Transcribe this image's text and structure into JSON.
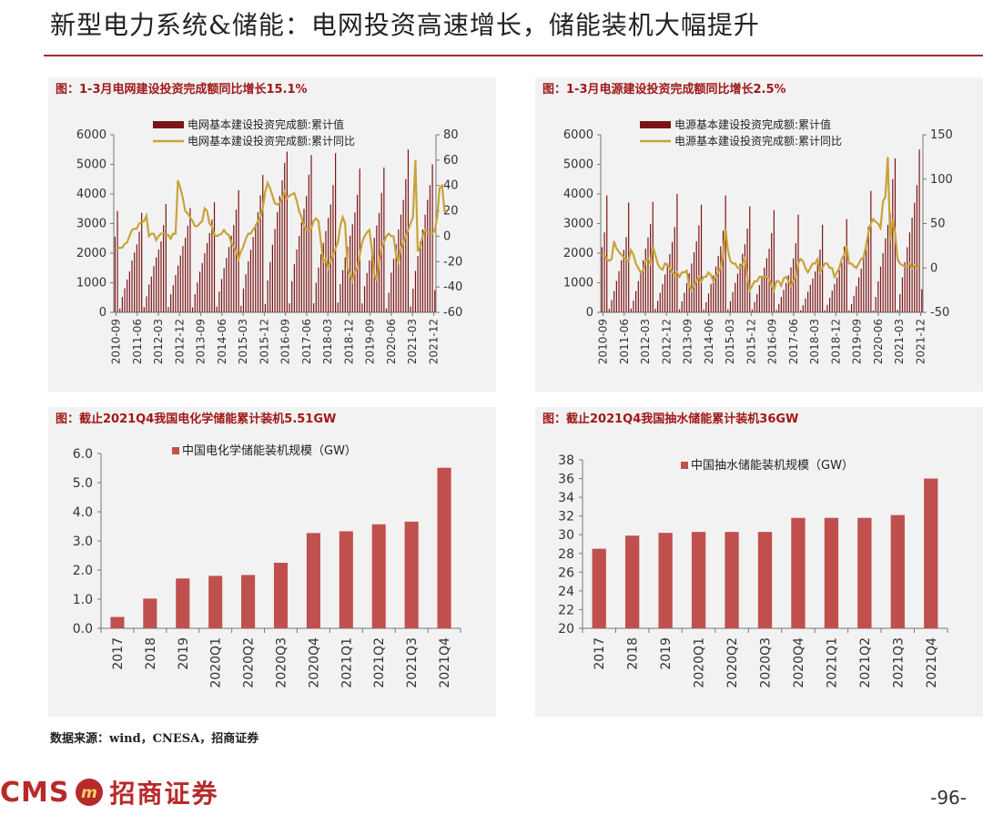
{
  "page": {
    "title": "新型电力系统&储能：电网投资高速增长，储能装机大幅提升",
    "source": "数据来源：wind，CNESA，招商证券",
    "logo_text": "CMS",
    "logo_cn": "招商证券",
    "logo_mark": "m",
    "page_number": "-96-",
    "accent_color": "#a82c2c"
  },
  "chart_data": [
    {
      "type": "bar",
      "title": "图：1-3月电网建设投资完成额同比增长15.1%",
      "ylim": [
        0,
        6000
      ],
      "y_ticks": [
        0,
        1000,
        2000,
        3000,
        4000,
        5000,
        6000
      ],
      "y2lim": [
        -60,
        80
      ],
      "y2_ticks": [
        -60,
        -40,
        -20,
        0,
        20,
        40,
        60,
        80
      ],
      "x_tick_labels": [
        "2010-09",
        "2011-06",
        "2012-03",
        "2012-12",
        "2013-09",
        "2014-06",
        "2015-03",
        "2015-12",
        "2016-09",
        "2017-06",
        "2018-03",
        "2018-12",
        "2019-09",
        "2020-06",
        "2021-03",
        "2021-12"
      ],
      "series": [
        {
          "name": "电网基本建设投资完成额:累计值",
          "kind": "bar",
          "axis": "left",
          "color": "#7b1515",
          "values": [
            2556,
            3425,
            125,
            520,
            815,
            1110,
            1380,
            1750,
            2025,
            2295,
            2725,
            3365,
            175,
            540,
            940,
            1210,
            1560,
            1855,
            2120,
            2400,
            2945,
            3660,
            180,
            610,
            920,
            1260,
            1580,
            1920,
            2245,
            2520,
            2930,
            3525,
            165,
            615,
            1010,
            1375,
            1665,
            2000,
            2345,
            2680,
            3130,
            3720,
            195,
            700,
            1125,
            1500,
            1840,
            2205,
            2590,
            2950,
            3470,
            4125,
            220,
            805,
            1285,
            1725,
            2115,
            2540,
            2985,
            3380,
            3955,
            4640,
            285,
            1080,
            1705,
            2285,
            2820,
            3390,
            3930,
            4460,
            5050,
            5430,
            305,
            1055,
            1625,
            2125,
            2580,
            3040,
            3500,
            3930,
            4650,
            5315,
            310,
            1000,
            1515,
            1960,
            2350,
            2750,
            3190,
            3645,
            4300,
            5375,
            330,
            950,
            1425,
            1855,
            2215,
            2595,
            2975,
            3375,
            3965,
            4855,
            300,
            880,
            1330,
            1755,
            2120,
            2520,
            2935,
            3360,
            4040,
            4895,
            130,
            665,
            1340,
            1810,
            2300,
            2800,
            3300,
            3800,
            4500,
            5500,
            200,
            800,
            1400,
            1900,
            2400,
            2800,
            3300,
            3800,
            4300,
            5000,
            750
          ]
        },
        {
          "name": "电网基本建设投资完成额:累计同比",
          "kind": "line",
          "axis": "right",
          "color": "#c8a33a",
          "values": [
            -10,
            -10,
            -9,
            -9,
            -6,
            -5,
            0,
            5,
            6,
            6,
            10,
            11,
            12,
            16,
            0,
            2,
            2,
            -3,
            0,
            2,
            2,
            1,
            1,
            -2,
            2,
            2,
            44,
            38,
            30,
            20,
            18,
            15,
            12,
            8,
            8,
            10,
            12,
            22,
            20,
            10,
            8,
            1,
            0,
            1,
            2,
            5,
            2,
            1,
            -5,
            -8,
            -12,
            -18,
            -12,
            -8,
            -2,
            2,
            2,
            5,
            8,
            12,
            15,
            22,
            35,
            42,
            38,
            32,
            26,
            25,
            26,
            30,
            35,
            30,
            32,
            33,
            34,
            28,
            20,
            15,
            8,
            5,
            5,
            6,
            12,
            14,
            12,
            -5,
            -20,
            -18,
            -25,
            -20,
            -15,
            -10,
            -5,
            8,
            15,
            10,
            -25,
            -30,
            -35,
            -28,
            -25,
            -15,
            -5,
            0,
            3,
            5,
            -10,
            -30,
            -35,
            -20,
            -10,
            -5,
            0,
            2,
            0,
            0,
            -15,
            -20,
            -10,
            -5,
            0,
            5,
            10,
            15,
            60,
            -12,
            -8,
            0,
            5,
            3,
            2,
            2,
            5,
            15,
            38,
            40,
            20,
            20
          ]
        }
      ]
    },
    {
      "type": "bar",
      "title": "图：1-3月电源建设投资完成额同比增长2.5%",
      "ylim": [
        0,
        6000
      ],
      "y_ticks": [
        0,
        1000,
        2000,
        3000,
        4000,
        5000,
        6000
      ],
      "y2lim": [
        -50,
        150
      ],
      "y2_ticks": [
        -50,
        0,
        50,
        100,
        150
      ],
      "x_tick_labels": [
        "2010-09",
        "2011-06",
        "2012-03",
        "2012-12",
        "2013-09",
        "2014-06",
        "2015-03",
        "2015-12",
        "2016-09",
        "2017-06",
        "2018-03",
        "2018-12",
        "2019-09",
        "2020-06",
        "2021-03",
        "2021-12"
      ],
      "series": [
        {
          "name": "电源基本建设投资完成额:累计值",
          "kind": "bar",
          "axis": "left",
          "color": "#7b1515",
          "values": [
            2200,
            2700,
            3950,
            120,
            420,
            720,
            1060,
            1390,
            1760,
            2110,
            2540,
            3710,
            130,
            400,
            720,
            1060,
            1400,
            1760,
            2150,
            2530,
            2980,
            3730,
            120,
            390,
            660,
            960,
            1280,
            1650,
            1970,
            2380,
            2880,
            4000,
            100,
            370,
            660,
            990,
            1320,
            1650,
            2030,
            2400,
            2940,
            3640,
            95,
            340,
            640,
            960,
            1250,
            1550,
            1900,
            2230,
            2760,
            3950,
            105,
            380,
            680,
            1000,
            1310,
            1640,
            1980,
            2300,
            2830,
            3580,
            100,
            350,
            620,
            920,
            1190,
            1510,
            1830,
            2150,
            2680,
            3450,
            80,
            280,
            520,
            760,
            1000,
            1250,
            1520,
            1820,
            2340,
            3300,
            70,
            240,
            470,
            700,
            930,
            1140,
            1380,
            1650,
            2120,
            2960,
            70,
            250,
            490,
            730,
            960,
            1180,
            1420,
            1680,
            2220,
            3150,
            70,
            280,
            560,
            880,
            1180,
            1480,
            1820,
            2250,
            2900,
            4100,
            60,
            520,
            1050,
            1550,
            2000,
            2500,
            2950,
            3350,
            4500,
            5200,
            90,
            620,
            1180,
            1700,
            2200,
            2700,
            3200,
            3700,
            4300,
            5500,
            780
          ]
        },
        {
          "name": "电源基本建设投资完成额:累计同比",
          "kind": "line",
          "axis": "right",
          "color": "#c8a33a",
          "values": [
            15,
            15,
            10,
            8,
            10,
            30,
            22,
            18,
            15,
            12,
            10,
            8,
            20,
            15,
            5,
            0,
            -5,
            -3,
            8,
            10,
            5,
            25,
            15,
            5,
            0,
            -2,
            5,
            3,
            0,
            -5,
            -8,
            -5,
            -10,
            -5,
            -5,
            -3,
            -20,
            -25,
            -20,
            -15,
            -10,
            -15,
            -10,
            -10,
            -5,
            -8,
            -15,
            -10,
            -5,
            0,
            15,
            45,
            20,
            8,
            5,
            5,
            0,
            0,
            5,
            10,
            -10,
            -25,
            -20,
            -15,
            -15,
            -10,
            -10,
            -10,
            -10,
            -12,
            -20,
            -25,
            -15,
            -15,
            -20,
            -12,
            -10,
            -15,
            -20,
            -15,
            -10,
            5,
            10,
            8,
            0,
            -5,
            0,
            5,
            5,
            10,
            -5,
            0,
            5,
            5,
            0,
            0,
            -10,
            -5,
            0,
            10,
            15,
            25,
            5,
            5,
            2,
            0,
            5,
            10,
            12,
            25,
            40,
            50,
            55,
            52,
            50,
            45,
            75,
            80,
            125,
            30,
            55,
            40,
            10,
            5,
            3,
            2,
            2,
            5,
            0,
            3,
            0,
            2
          ]
        }
      ]
    },
    {
      "type": "bar",
      "title": "图：截止2021Q4我国电化学储能累计装机5.51GW",
      "ylim": [
        0,
        6
      ],
      "y_ticks": [
        "0.0",
        "1.0",
        "2.0",
        "3.0",
        "4.0",
        "5.0",
        "6.0"
      ],
      "categories": [
        "2017",
        "2018",
        "2019",
        "2020Q1",
        "2020Q2",
        "2020Q3",
        "2020Q4",
        "2021Q1",
        "2021Q2",
        "2021Q3",
        "2021Q4"
      ],
      "series": [
        {
          "name": "中国电化学储能装机规模（GW）",
          "color": "#c0504d",
          "values": [
            0.39,
            1.02,
            1.71,
            1.8,
            1.83,
            2.25,
            3.27,
            3.33,
            3.57,
            3.66,
            5.51
          ]
        }
      ]
    },
    {
      "type": "bar",
      "title": "图：截止2021Q4我国抽水储能累计装机36GW",
      "ylim": [
        20,
        38
      ],
      "y_ticks": [
        20,
        22,
        24,
        26,
        28,
        30,
        32,
        34,
        36,
        38
      ],
      "categories": [
        "2017",
        "2018",
        "2019",
        "2020Q1",
        "2020Q2",
        "2020Q3",
        "2020Q4",
        "2021Q1",
        "2021Q2",
        "2021Q3",
        "2021Q4"
      ],
      "series": [
        {
          "name": "中国抽水储能装机规模（GW）",
          "color": "#c0504d",
          "values": [
            28.5,
            29.9,
            30.2,
            30.3,
            30.3,
            30.3,
            31.8,
            31.8,
            31.8,
            32.1,
            36.0
          ]
        }
      ]
    }
  ]
}
